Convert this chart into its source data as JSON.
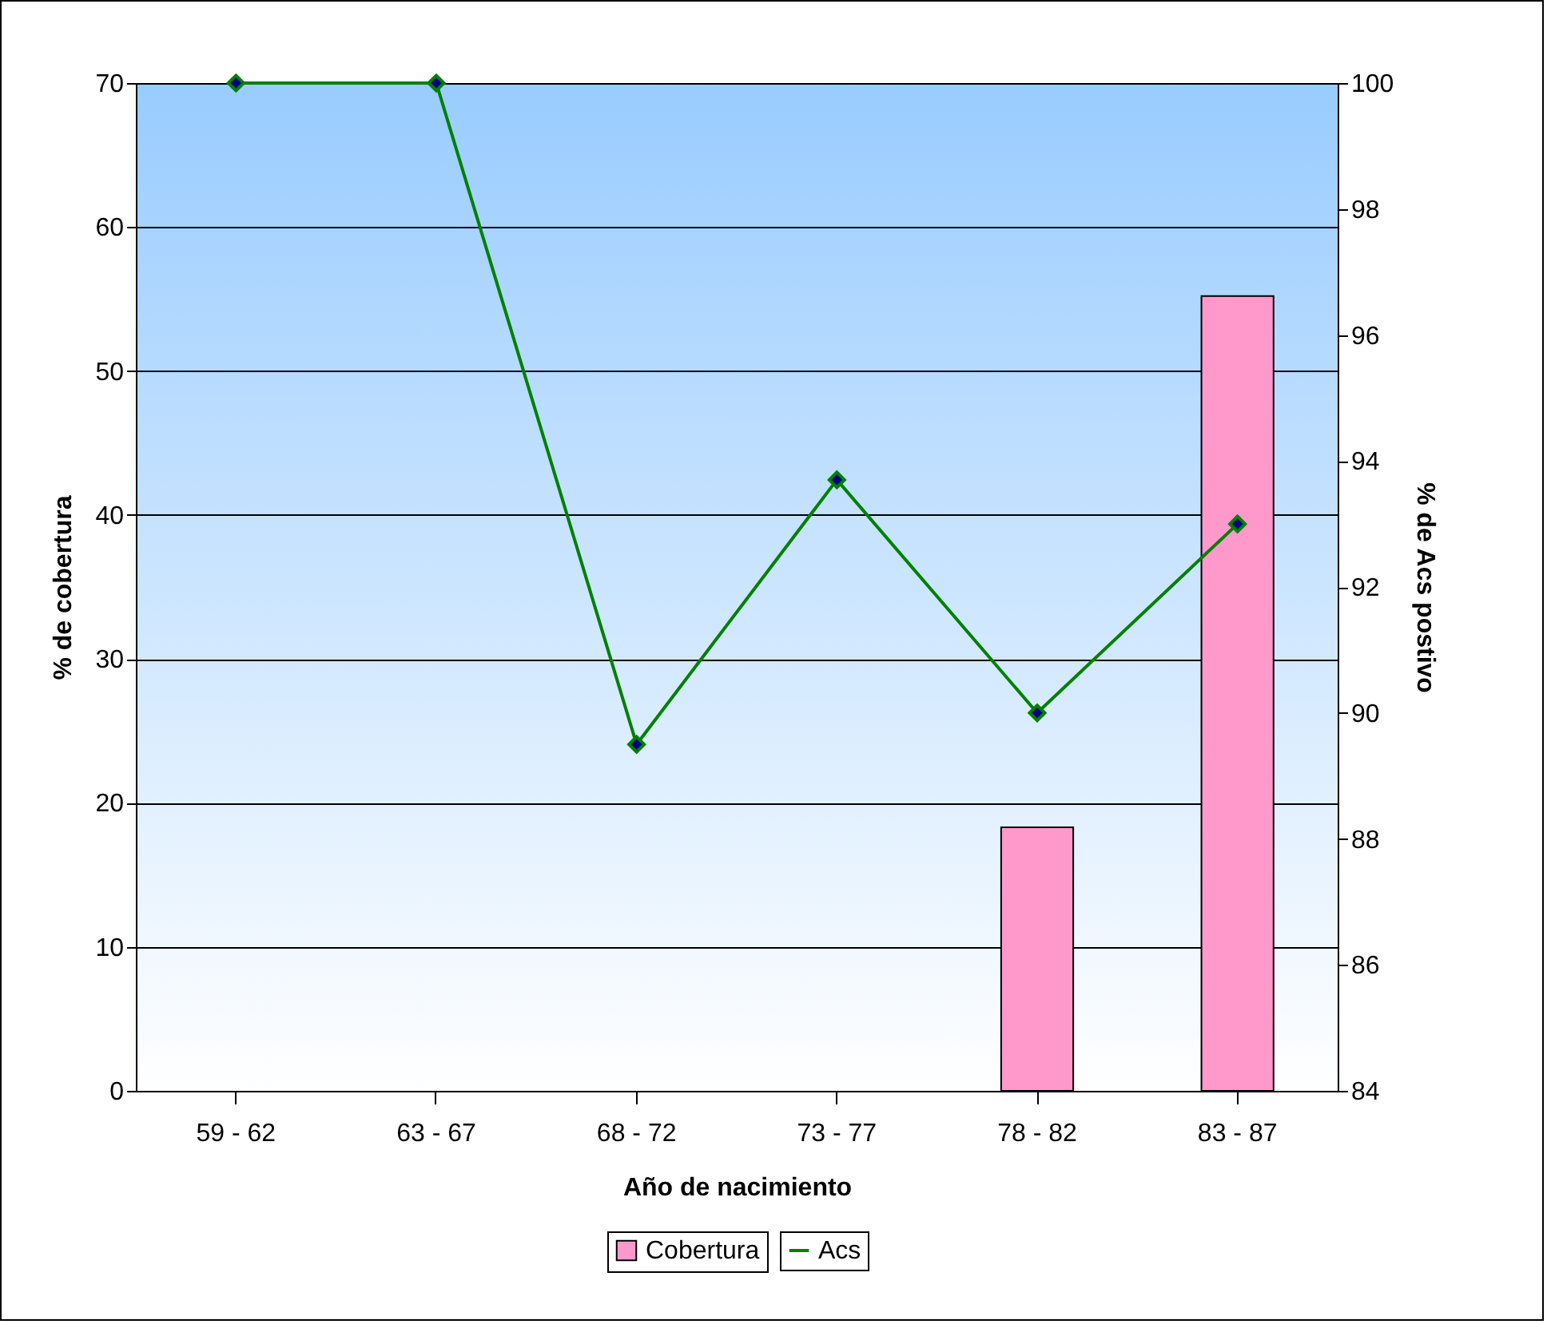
{
  "chart_data": {
    "type": "bar",
    "xlabel": "Año de nacimiento",
    "ylabel": "% de cobertura",
    "y2label": "% de Acs postivo",
    "categories": [
      "59 - 62",
      "63 - 67",
      "68 - 72",
      "73 - 77",
      "78 - 82",
      "83 - 87"
    ],
    "series": [
      {
        "name": "Cobertura",
        "color": "#ff99cc",
        "values": [
          null,
          null,
          null,
          null,
          18.3,
          55.2
        ]
      },
      {
        "name": "Acs",
        "type": "line",
        "axis": "y2",
        "color": "#008000",
        "values": [
          100,
          100,
          89.5,
          93.7,
          90,
          93
        ]
      }
    ],
    "ylim": [
      0,
      70
    ],
    "yticks": [
      0,
      10,
      20,
      30,
      40,
      50,
      60,
      70
    ],
    "y2lim": [
      84,
      100
    ],
    "y2ticks": [
      84,
      86,
      88,
      90,
      92,
      94,
      96,
      98,
      100
    ],
    "grid": "y",
    "legend": "bottom",
    "marker": "diamond"
  }
}
